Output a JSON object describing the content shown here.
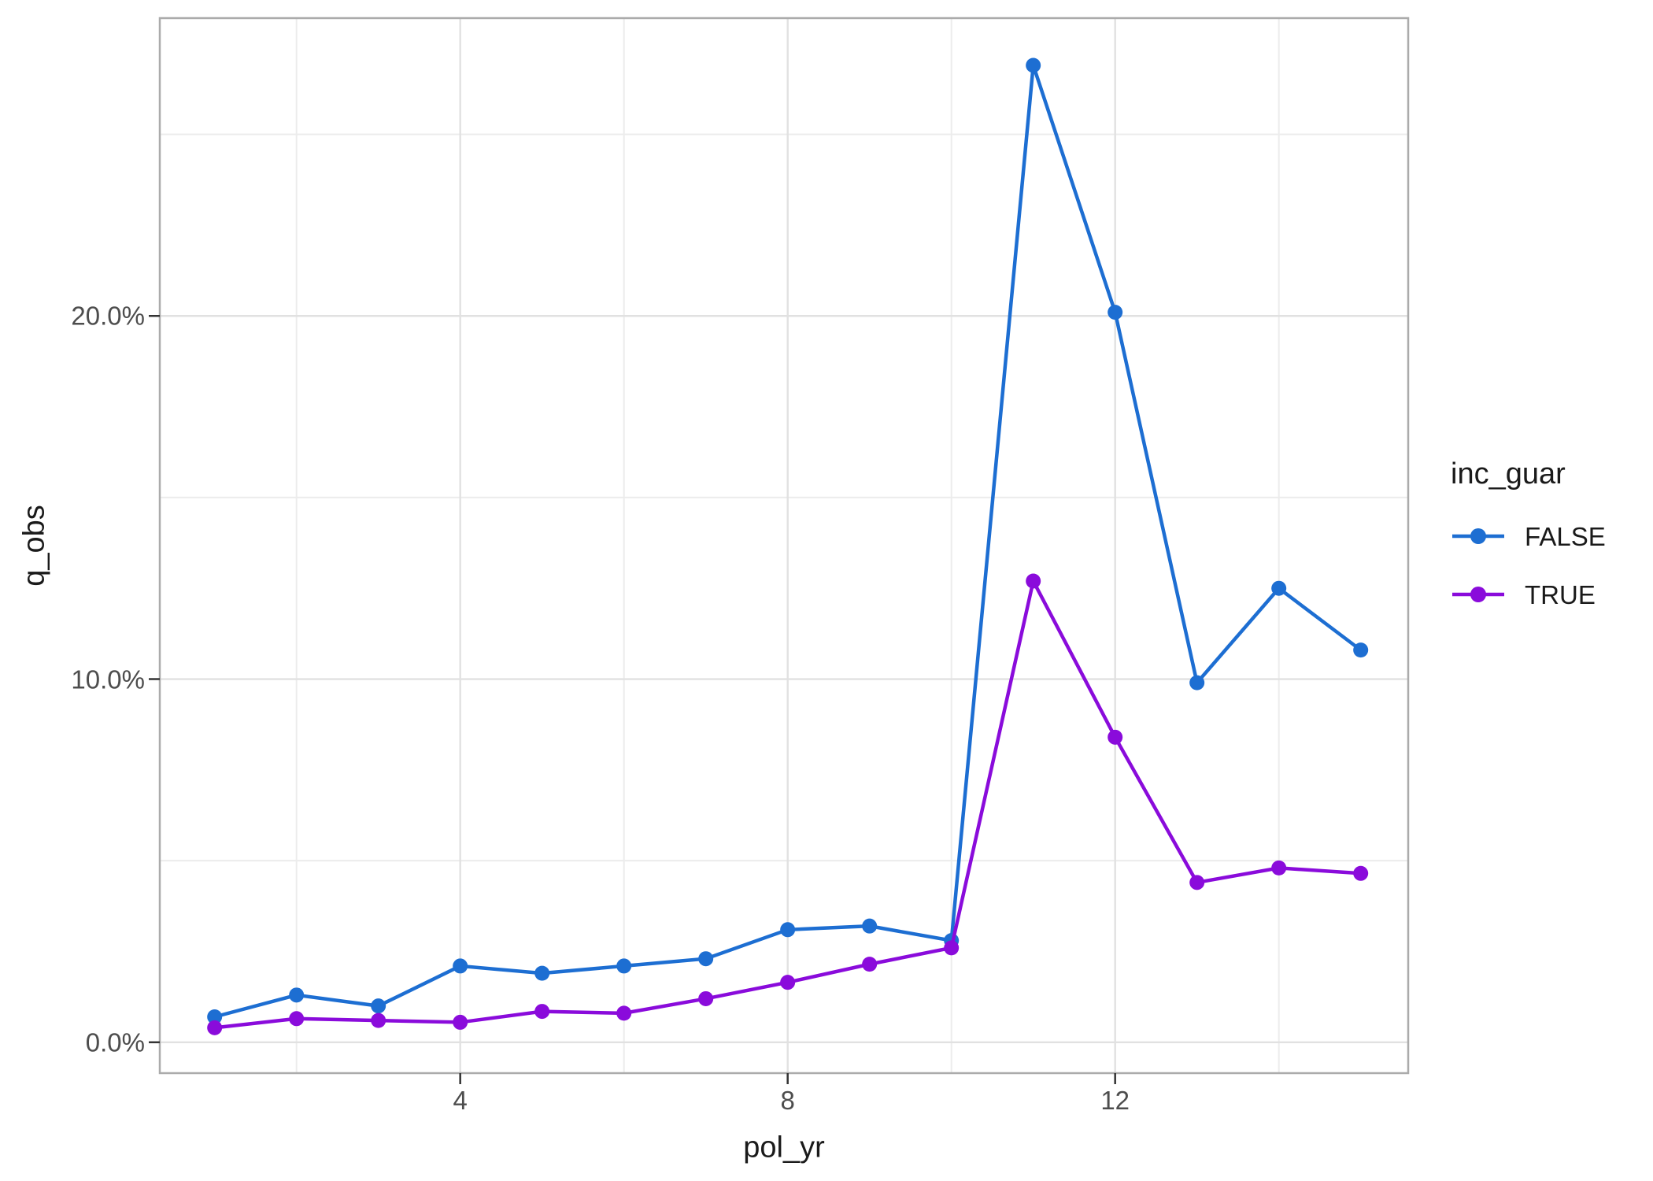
{
  "chart_data": {
    "type": "line",
    "title": "",
    "xlabel": "pol_yr",
    "ylabel": "q_obs",
    "y_unit": "percent",
    "x": [
      1,
      2,
      3,
      4,
      5,
      6,
      7,
      8,
      9,
      10,
      11,
      12,
      13,
      14,
      15
    ],
    "series": [
      {
        "name": "FALSE",
        "color": "#1d6ed2",
        "values": [
          0.7,
          1.3,
          1.0,
          2.1,
          1.9,
          2.1,
          2.3,
          3.1,
          3.2,
          2.8,
          26.9,
          20.1,
          9.9,
          12.5,
          10.8
        ]
      },
      {
        "name": "TRUE",
        "color": "#8a0bdb",
        "values": [
          0.4,
          0.65,
          0.6,
          0.55,
          0.85,
          0.8,
          1.2,
          1.65,
          2.15,
          2.6,
          12.7,
          8.4,
          4.4,
          4.8,
          4.65
        ]
      }
    ],
    "axes": {
      "x": {
        "ticks": [
          4,
          8,
          12
        ],
        "minor_ticks": [
          2,
          6,
          10,
          14
        ],
        "domain": [
          0.33,
          15.58
        ]
      },
      "y": {
        "ticks": [
          {
            "value": 0,
            "label": "0.0%"
          },
          {
            "value": 10,
            "label": "10.0%"
          },
          {
            "value": 20,
            "label": "20.0%"
          }
        ],
        "minor_ticks": [
          5,
          15,
          25
        ],
        "domain": [
          -0.85,
          28.2
        ]
      }
    },
    "legend": {
      "title": "inc_guar",
      "position": "right",
      "entries": [
        "FALSE",
        "TRUE"
      ]
    },
    "grid": true,
    "style": {
      "panel_border_color": "#ababab",
      "grid_major_color": "#e1e1e1",
      "grid_minor_color": "#ececec",
      "tick_color": "#333333",
      "tick_label_color": "#4d4d4d"
    }
  }
}
